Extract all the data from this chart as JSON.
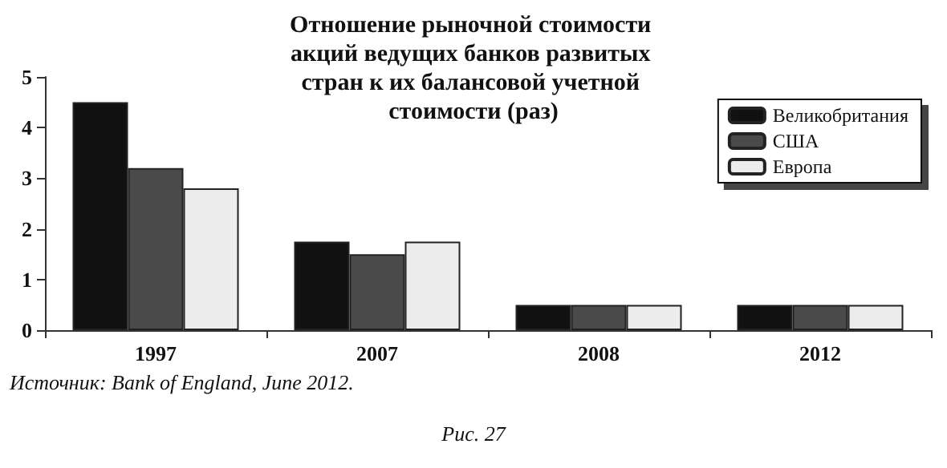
{
  "chart_data": {
    "type": "bar",
    "title": "Отношение рыночной стоимости акций ведущих банков развитых стран к их балансовой учетной стоимости (раз)",
    "categories": [
      "1997",
      "2007",
      "2008",
      "2012"
    ],
    "series": [
      {
        "name": "Великобритания",
        "color": "#111111",
        "values": [
          4.5,
          1.75,
          0.5,
          0.5
        ]
      },
      {
        "name": "США",
        "color": "#4a4a4a",
        "values": [
          3.2,
          1.5,
          0.5,
          0.5
        ]
      },
      {
        "name": "Европа",
        "color": "#ececec",
        "values": [
          2.8,
          1.75,
          0.5,
          0.5
        ]
      }
    ],
    "ylim": [
      0,
      5
    ],
    "yticks": [
      0,
      1,
      2,
      3,
      4,
      5
    ],
    "grid": false,
    "legend": "top right",
    "annotations": [
      "Источник: Bank of England, June 2012.",
      "Рис. 27"
    ]
  }
}
